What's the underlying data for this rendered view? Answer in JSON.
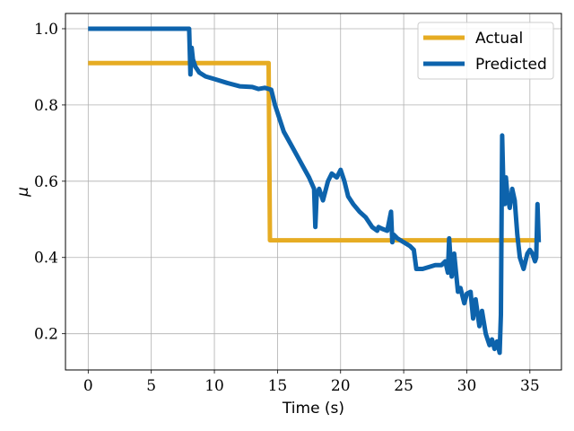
{
  "chart_data": {
    "type": "line",
    "title": "",
    "xlabel": "Time (s)",
    "ylabel": "μ",
    "xlim": [
      -1.8,
      37.5
    ],
    "ylim": [
      0.105,
      1.04
    ],
    "xticks": [
      0,
      5,
      10,
      15,
      20,
      25,
      30,
      35
    ],
    "xtick_labels": [
      "0",
      "5",
      "10",
      "15",
      "20",
      "25",
      "30",
      "35"
    ],
    "yticks": [
      0.2,
      0.4,
      0.6,
      0.8,
      1.0
    ],
    "ytick_labels": [
      "0.2",
      "0.4",
      "0.6",
      "0.8",
      "1.0"
    ],
    "grid": true,
    "legend_position": "top-right",
    "series": [
      {
        "name": "Actual",
        "color": "#e6ac23",
        "x": [
          0,
          14.3,
          14.4,
          35.7
        ],
        "y": [
          0.91,
          0.91,
          0.445,
          0.445
        ]
      },
      {
        "name": "Predicted",
        "color": "#0d63ac",
        "x": [
          0,
          8.0,
          8.1,
          8.2,
          8.3,
          8.5,
          8.8,
          9.3,
          10.0,
          11.0,
          12.0,
          13.0,
          13.5,
          14.0,
          14.5,
          14.8,
          15.0,
          15.5,
          16.0,
          16.5,
          17.0,
          17.5,
          17.9,
          18.0,
          18.1,
          18.3,
          18.6,
          19.0,
          19.3,
          19.7,
          20.0,
          20.3,
          20.6,
          21.0,
          21.5,
          22.0,
          22.5,
          22.9,
          23.0,
          23.3,
          23.7,
          24.0,
          24.1,
          24.2,
          24.5,
          25.0,
          25.5,
          25.8,
          26.0,
          26.5,
          27.0,
          27.5,
          28.0,
          28.3,
          28.5,
          28.6,
          28.8,
          29.0,
          29.3,
          29.5,
          29.8,
          30.0,
          30.3,
          30.5,
          30.7,
          31.0,
          31.2,
          31.5,
          31.8,
          32.0,
          32.2,
          32.4,
          32.6,
          32.7,
          32.8,
          32.9,
          33.0,
          33.1,
          33.2,
          33.4,
          33.6,
          33.8,
          34.0,
          34.2,
          34.5,
          34.8,
          35.0,
          35.2,
          35.4,
          35.5,
          35.6,
          35.7
        ],
        "y": [
          1.0,
          1.0,
          0.88,
          0.95,
          0.92,
          0.9,
          0.885,
          0.875,
          0.868,
          0.858,
          0.849,
          0.847,
          0.842,
          0.845,
          0.84,
          0.8,
          0.78,
          0.73,
          0.7,
          0.67,
          0.64,
          0.61,
          0.58,
          0.48,
          0.56,
          0.58,
          0.55,
          0.6,
          0.62,
          0.61,
          0.63,
          0.6,
          0.56,
          0.54,
          0.52,
          0.505,
          0.48,
          0.47,
          0.48,
          0.475,
          0.47,
          0.52,
          0.44,
          0.46,
          0.45,
          0.44,
          0.43,
          0.42,
          0.37,
          0.37,
          0.375,
          0.38,
          0.38,
          0.39,
          0.36,
          0.45,
          0.35,
          0.41,
          0.31,
          0.32,
          0.28,
          0.305,
          0.31,
          0.24,
          0.29,
          0.22,
          0.26,
          0.2,
          0.17,
          0.185,
          0.16,
          0.18,
          0.15,
          0.25,
          0.72,
          0.58,
          0.54,
          0.61,
          0.57,
          0.53,
          0.58,
          0.55,
          0.46,
          0.4,
          0.37,
          0.41,
          0.42,
          0.41,
          0.39,
          0.4,
          0.54,
          0.44
        ]
      }
    ]
  }
}
